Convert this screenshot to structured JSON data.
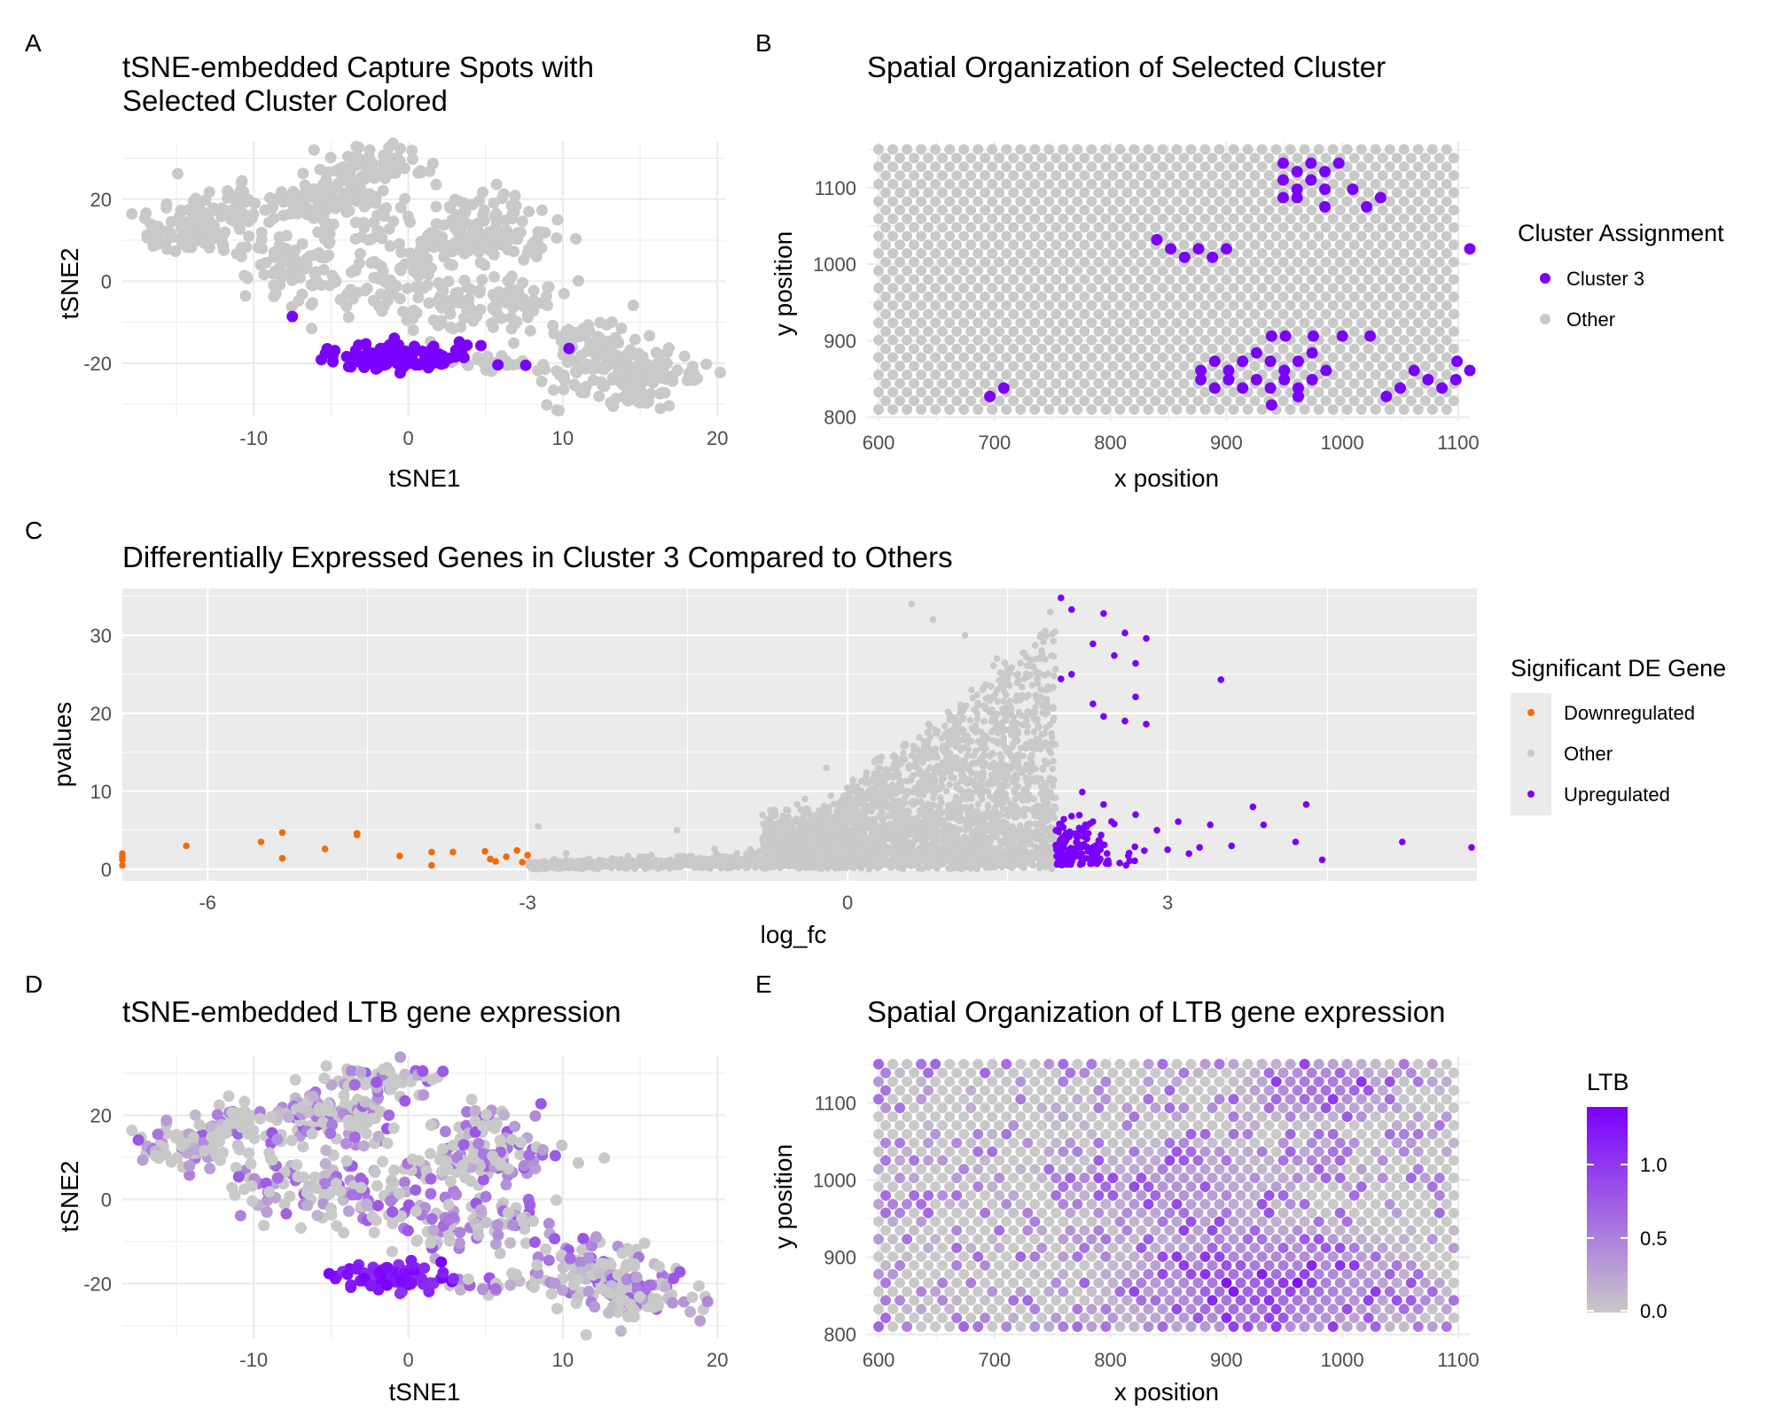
{
  "colors": {
    "cluster": "#7a00ff",
    "other": "#c9c9c9",
    "down": "#f46b00",
    "panel_grey": "#ebebeb"
  },
  "panels": {
    "A": {
      "label": "A",
      "title": [
        "tSNE-embedded Capture Spots with",
        "Selected Cluster Colored"
      ],
      "xlabel": "tSNE1",
      "ylabel": "tSNE2"
    },
    "B": {
      "label": "B",
      "title": [
        "Spatial Organization of Selected Cluster"
      ],
      "xlabel": "x position",
      "ylabel": "y position",
      "legend": {
        "title": "Cluster Assignment",
        "items": [
          "Cluster 3",
          "Other"
        ]
      }
    },
    "C": {
      "label": "C",
      "title": [
        "Differentially Expressed Genes in Cluster 3 Compared to Others"
      ],
      "xlabel": "log_fc",
      "ylabel": "pvalues",
      "legend": {
        "title": "Significant DE Gene",
        "items": [
          "Downregulated",
          "Other",
          "Upregulated"
        ]
      }
    },
    "D": {
      "label": "D",
      "title": [
        "tSNE-embedded LTB gene expression"
      ],
      "xlabel": "tSNE1",
      "ylabel": "tSNE2"
    },
    "E": {
      "label": "E",
      "title": [
        "Spatial Organization of LTB gene expression"
      ],
      "xlabel": "x position",
      "ylabel": "y position",
      "legend": {
        "title": "LTB",
        "ticks": [
          "1.0",
          "0.5",
          "0.0"
        ]
      }
    }
  },
  "chart_data": [
    {
      "panel": "A",
      "type": "scatter",
      "xlim": [
        -18.5,
        20.5
      ],
      "ylim": [
        -33,
        34
      ],
      "xticks": [
        -10,
        0,
        10,
        20
      ],
      "yticks": [
        -20,
        0,
        20
      ],
      "grid": true,
      "series": [
        {
          "name": "Cluster 3",
          "color": "#7a00ff",
          "points": [
            [
              -3.1,
              -18.5
            ],
            [
              -2.6,
              -17.2
            ],
            [
              -2.2,
              -19.1
            ],
            [
              -1.8,
              -16.4
            ],
            [
              -1.4,
              -20.2
            ],
            [
              -1.0,
              -18.1
            ],
            [
              -0.6,
              -16.9
            ],
            [
              -0.2,
              -19.6
            ],
            [
              0.3,
              -17.5
            ],
            [
              0.7,
              -20.4
            ],
            [
              1.1,
              -18.3
            ],
            [
              1.5,
              -16.6
            ],
            [
              1.9,
              -19.8
            ],
            [
              -2.9,
              -20.6
            ],
            [
              -2.0,
              -21.2
            ],
            [
              -1.2,
              -15.5
            ],
            [
              -0.4,
              -21.0
            ],
            [
              0.4,
              -15.9
            ],
            [
              1.3,
              -21.1
            ],
            [
              2.0,
              -17.8
            ],
            [
              -3.4,
              -16.9
            ],
            [
              2.3,
              -20.0
            ],
            [
              -1.6,
              -18.8
            ],
            [
              0.0,
              -18.0
            ],
            [
              0.9,
              -17.1
            ],
            [
              3.3,
              -14.8
            ],
            [
              3.8,
              -15.6
            ],
            [
              4.7,
              -15.7
            ],
            [
              3.6,
              -18.6
            ],
            [
              5.8,
              -20.4
            ],
            [
              10.4,
              -16.4
            ],
            [
              -7.5,
              -8.6
            ],
            [
              7.6,
              -20.5
            ]
          ]
        },
        {
          "name": "Other",
          "color": "#c9c9c9",
          "points": [
            [
              -16.5,
              9.5
            ],
            [
              -15.4,
              11.8
            ],
            [
              -14.6,
              9.0
            ],
            [
              -14.0,
              15.0
            ],
            [
              -13.2,
              13.1
            ],
            [
              -12.6,
              17.5
            ],
            [
              -12.3,
              10.4
            ],
            [
              -11.7,
              22.0
            ],
            [
              -11.1,
              6.7
            ],
            [
              -10.6,
              1.4
            ],
            [
              -10.1,
              15.4
            ],
            [
              -9.7,
              8.2
            ],
            [
              -9.2,
              4.5
            ],
            [
              -8.7,
              -1.0
            ],
            [
              -8.2,
              20.1
            ],
            [
              -7.6,
              2.4
            ],
            [
              -7.1,
              -4.8
            ],
            [
              -6.6,
              22.4
            ],
            [
              -6.0,
              17.2
            ],
            [
              -5.5,
              14.9
            ],
            [
              -5.0,
              19.0
            ],
            [
              -4.6,
              22.9
            ],
            [
              -4.2,
              27.8
            ],
            [
              -3.6,
              30.1
            ],
            [
              -3.0,
              25.6
            ],
            [
              -2.5,
              21.3
            ],
            [
              -2.0,
              16.1
            ],
            [
              -1.6,
              30.7
            ],
            [
              -1.1,
              26.7
            ],
            [
              -4.7,
              -0.2
            ],
            [
              -4.0,
              -6.1
            ],
            [
              -3.4,
              2.6
            ],
            [
              -2.8,
              -2.3
            ],
            [
              -2.2,
              4.8
            ],
            [
              -1.7,
              -7.3
            ],
            [
              -1.0,
              -3.1
            ],
            [
              -0.2,
              4.2
            ],
            [
              0.3,
              -9.1
            ],
            [
              0.8,
              7.9
            ],
            [
              1.3,
              1.6
            ],
            [
              1.8,
              18.2
            ],
            [
              2.3,
              13.7
            ],
            [
              2.9,
              -11.6
            ],
            [
              3.3,
              -5.3
            ],
            [
              3.9,
              7.4
            ],
            [
              4.4,
              11.0
            ],
            [
              4.9,
              14.7
            ],
            [
              5.3,
              7.5
            ],
            [
              5.9,
              10.9
            ],
            [
              6.4,
              -4.5
            ],
            [
              6.9,
              -10.4
            ],
            [
              7.4,
              -0.4
            ],
            [
              7.9,
              -12.1
            ],
            [
              8.4,
              8.9
            ],
            [
              9.0,
              -5.9
            ],
            [
              11.0,
              -12.5
            ],
            [
              11.6,
              -17.0
            ],
            [
              12.1,
              -21.2
            ],
            [
              12.7,
              -25.6
            ],
            [
              13.1,
              -29.6
            ],
            [
              13.6,
              -15.0
            ],
            [
              14.1,
              -19.6
            ],
            [
              14.6,
              -23.6
            ],
            [
              15.1,
              -28.1
            ],
            [
              15.6,
              -13.3
            ],
            [
              16.1,
              -20.1
            ],
            [
              16.6,
              -27.2
            ],
            [
              17.1,
              -23.1
            ],
            [
              18.4,
              -20.8
            ],
            [
              10.1,
              -24.1
            ],
            [
              9.6,
              -21.9
            ],
            [
              12.4,
              -10.1
            ],
            [
              13.8,
              -11.5
            ]
          ]
        }
      ]
    },
    {
      "panel": "B",
      "type": "scatter",
      "xlim": [
        590,
        1110
      ],
      "ylim": [
        795,
        1160
      ],
      "xticks": [
        600,
        700,
        800,
        900,
        1000,
        1100
      ],
      "yticks": [
        800,
        900,
        1000,
        1100
      ],
      "grid": true,
      "note_grid": "background spots on hex lattice: x from 600 to 1100 step 12.25, y from 810 to 1150 step 11.33, alternate rows offset",
      "series": [
        {
          "name": "Cluster 3",
          "color": "#7a00ff",
          "points": [
            [
              949,
              1132
            ],
            [
              961,
              1121
            ],
            [
              973,
              1132
            ],
            [
              985,
              1121
            ],
            [
              997,
              1132
            ],
            [
              961,
              1098
            ],
            [
              973,
              1110
            ],
            [
              949,
              1110
            ],
            [
              985,
              1098
            ],
            [
              1009,
              1098
            ],
            [
              949,
              1087
            ],
            [
              961,
              1087
            ],
            [
              985,
              1075
            ],
            [
              1021,
              1075
            ],
            [
              1033,
              1087
            ],
            [
              852,
              1020
            ],
            [
              864,
              1009
            ],
            [
              876,
              1020
            ],
            [
              888,
              1009
            ],
            [
              900,
              1020
            ],
            [
              840,
              1032
            ],
            [
              939,
              906
            ],
            [
              951,
              906
            ],
            [
              975,
              906
            ],
            [
              1000,
              906
            ],
            [
              1024,
              906
            ],
            [
              878,
              861
            ],
            [
              890,
              873
            ],
            [
              902,
              861
            ],
            [
              914,
              873
            ],
            [
              926,
              884
            ],
            [
              938,
              873
            ],
            [
              950,
              861
            ],
            [
              962,
              873
            ],
            [
              974,
              884
            ],
            [
              902,
              849
            ],
            [
              914,
              838
            ],
            [
              926,
              849
            ],
            [
              938,
              838
            ],
            [
              950,
              849
            ],
            [
              962,
              838
            ],
            [
              974,
              849
            ],
            [
              890,
              838
            ],
            [
              878,
              849
            ],
            [
              986,
              861
            ],
            [
              939,
              816
            ],
            [
              962,
              827
            ],
            [
              1050,
              838
            ],
            [
              1062,
              861
            ],
            [
              1074,
              849
            ],
            [
              1086,
              838
            ],
            [
              1098,
              849
            ],
            [
              1110,
              861
            ],
            [
              1099,
              873
            ],
            [
              1110,
              1020
            ],
            [
              708,
              838
            ],
            [
              696,
              827
            ],
            [
              1038,
              827
            ]
          ]
        }
      ]
    },
    {
      "panel": "C",
      "type": "scatter",
      "xlabel": "log_fc",
      "ylabel": "pvalues",
      "xlim": [
        -6.8,
        5.9
      ],
      "ylim": [
        -1.5,
        36
      ],
      "xticks": [
        -6,
        -3,
        0,
        3
      ],
      "yticks": [
        0,
        10,
        20,
        30
      ],
      "grid": true,
      "series": [
        {
          "name": "Downregulated",
          "color": "#f46b00",
          "points": [
            [
              -6.8,
              2.0
            ],
            [
              -6.8,
              1.2
            ],
            [
              -6.8,
              0.5
            ],
            [
              -6.8,
              1.6
            ],
            [
              -6.2,
              3.0
            ],
            [
              -5.5,
              3.5
            ],
            [
              -5.3,
              4.7
            ],
            [
              -5.3,
              1.4
            ],
            [
              -4.9,
              2.6
            ],
            [
              -4.6,
              4.4
            ],
            [
              -4.6,
              4.6
            ],
            [
              -4.2,
              1.7
            ],
            [
              -3.9,
              2.2
            ],
            [
              -3.9,
              0.5
            ],
            [
              -3.7,
              2.2
            ],
            [
              -3.4,
              2.3
            ],
            [
              -3.35,
              1.3
            ],
            [
              -3.3,
              1.0
            ],
            [
              -3.2,
              1.6
            ],
            [
              -3.1,
              2.4
            ],
            [
              -3.05,
              0.9
            ],
            [
              -3.0,
              1.8
            ]
          ]
        },
        {
          "name": "Other",
          "color": "#c9c9c9",
          "cloud": "dense cloud centered near log_fc 0 to 2, pvalues 0 to 34"
        },
        {
          "name": "Upregulated",
          "color": "#7a00ff",
          "points": [
            [
              2.0,
              34.8
            ],
            [
              2.1,
              33.3
            ],
            [
              2.4,
              32.8
            ],
            [
              2.6,
              30.3
            ],
            [
              2.8,
              29.6
            ],
            [
              2.3,
              28.9
            ],
            [
              2.5,
              27.4
            ],
            [
              2.7,
              26.4
            ],
            [
              2.1,
              25.0
            ],
            [
              2.0,
              24.4
            ],
            [
              3.5,
              24.3
            ],
            [
              2.3,
              21.2
            ],
            [
              2.7,
              22.1
            ],
            [
              2.4,
              19.6
            ],
            [
              2.6,
              19.0
            ],
            [
              2.8,
              18.6
            ],
            [
              2.2,
              9.9
            ],
            [
              2.4,
              8.3
            ],
            [
              2.1,
              6.8
            ],
            [
              2.3,
              6.1
            ],
            [
              2.5,
              5.8
            ],
            [
              2.7,
              7.0
            ],
            [
              2.9,
              5.0
            ],
            [
              3.1,
              6.1
            ],
            [
              3.3,
              2.8
            ],
            [
              3.4,
              5.7
            ],
            [
              3.6,
              3.0
            ],
            [
              3.8,
              8.0
            ],
            [
              4.2,
              3.5
            ],
            [
              4.3,
              8.3
            ],
            [
              4.45,
              1.2
            ],
            [
              5.2,
              3.5
            ],
            [
              5.85,
              2.8
            ],
            [
              3.9,
              5.7
            ],
            [
              3.0,
              2.5
            ],
            [
              3.2,
              2.0
            ]
          ]
        }
      ]
    },
    {
      "panel": "D",
      "type": "scatter",
      "xlim": [
        -18.5,
        20.5
      ],
      "ylim": [
        -33,
        34
      ],
      "xticks": [
        -10,
        0,
        10,
        20
      ],
      "yticks": [
        -20,
        0,
        20
      ],
      "grid": true,
      "color_variable": "LTB"
    },
    {
      "panel": "E",
      "type": "scatter",
      "xlim": [
        590,
        1110
      ],
      "ylim": [
        795,
        1160
      ],
      "xticks": [
        600,
        700,
        800,
        900,
        1000,
        1100
      ],
      "yticks": [
        800,
        900,
        1000,
        1100
      ],
      "grid": true,
      "color_variable": "LTB",
      "color_scale": {
        "low": "#c9c9c9",
        "high": "#7a00ff",
        "range": [
          0.0,
          1.4
        ],
        "ticks": [
          0.0,
          0.5,
          1.0
        ]
      }
    }
  ]
}
